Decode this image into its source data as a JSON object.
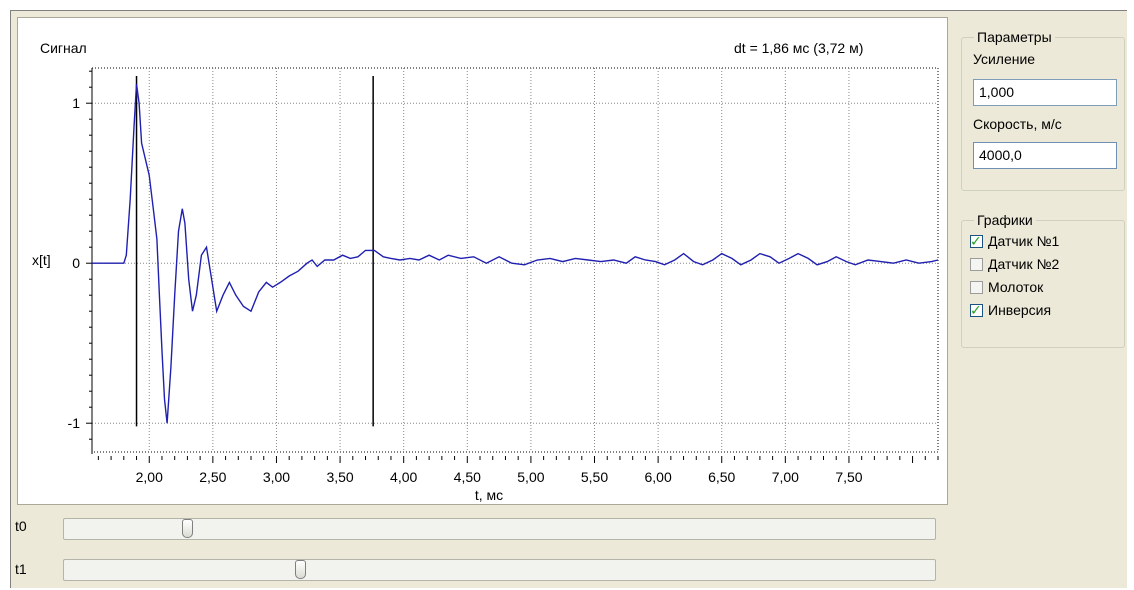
{
  "chart": {
    "title": "Сигнал",
    "dt_readout": "dt = 1,86 мс  (3,72 м)",
    "ylabel": "x[t]",
    "xlabel": "t, мс",
    "line_color": "#2020b0",
    "marker_color": "#000000"
  },
  "chart_data": {
    "type": "line",
    "title": "Сигнал",
    "xlabel": "t, мс",
    "ylabel": "x[t]",
    "xlim": [
      1.55,
      8.2
    ],
    "ylim": [
      -1.18,
      1.22
    ],
    "x_ticks": [
      "2,00",
      "2,50",
      "3,00",
      "3,50",
      "4,00",
      "4,50",
      "5,00",
      "5,50",
      "6,00",
      "6,50",
      "7,00",
      "7,50"
    ],
    "x_tick_values": [
      2.0,
      2.5,
      3.0,
      3.5,
      4.0,
      4.5,
      5.0,
      5.5,
      6.0,
      6.5,
      7.0,
      7.5
    ],
    "y_ticks": [
      "-1",
      "0",
      "1"
    ],
    "y_tick_values": [
      -1,
      0,
      1
    ],
    "grid": true,
    "vertical_markers": [
      1.9,
      3.76
    ],
    "series": [
      {
        "values": [
          [
            1.55,
            0
          ],
          [
            1.8,
            0
          ],
          [
            1.82,
            0.05
          ],
          [
            1.85,
            0.4
          ],
          [
            1.88,
            0.85
          ],
          [
            1.9,
            1.12
          ],
          [
            1.92,
            1.0
          ],
          [
            1.94,
            0.75
          ],
          [
            1.97,
            0.65
          ],
          [
            2.0,
            0.55
          ],
          [
            2.03,
            0.35
          ],
          [
            2.06,
            0.15
          ],
          [
            2.08,
            -0.2
          ],
          [
            2.1,
            -0.55
          ],
          [
            2.12,
            -0.85
          ],
          [
            2.14,
            -1.0
          ],
          [
            2.17,
            -0.65
          ],
          [
            2.2,
            -0.2
          ],
          [
            2.23,
            0.2
          ],
          [
            2.26,
            0.34
          ],
          [
            2.28,
            0.25
          ],
          [
            2.31,
            -0.1
          ],
          [
            2.34,
            -0.3
          ],
          [
            2.37,
            -0.2
          ],
          [
            2.41,
            0.05
          ],
          [
            2.45,
            0.1
          ],
          [
            2.49,
            -0.1
          ],
          [
            2.53,
            -0.3
          ],
          [
            2.58,
            -0.2
          ],
          [
            2.63,
            -0.12
          ],
          [
            2.68,
            -0.2
          ],
          [
            2.74,
            -0.27
          ],
          [
            2.8,
            -0.3
          ],
          [
            2.86,
            -0.18
          ],
          [
            2.92,
            -0.12
          ],
          [
            2.97,
            -0.15
          ],
          [
            3.03,
            -0.12
          ],
          [
            3.1,
            -0.08
          ],
          [
            3.17,
            -0.05
          ],
          [
            3.24,
            0.0
          ],
          [
            3.28,
            0.02
          ],
          [
            3.32,
            -0.02
          ],
          [
            3.38,
            0.02
          ],
          [
            3.45,
            0.02
          ],
          [
            3.52,
            0.05
          ],
          [
            3.58,
            0.03
          ],
          [
            3.64,
            0.04
          ],
          [
            3.7,
            0.08
          ],
          [
            3.77,
            0.08
          ],
          [
            3.84,
            0.04
          ],
          [
            3.9,
            0.03
          ],
          [
            3.97,
            0.02
          ],
          [
            4.05,
            0.03
          ],
          [
            4.12,
            0.02
          ],
          [
            4.2,
            0.05
          ],
          [
            4.28,
            0.02
          ],
          [
            4.35,
            0.05
          ],
          [
            4.45,
            0.03
          ],
          [
            4.55,
            0.04
          ],
          [
            4.65,
            0.0
          ],
          [
            4.75,
            0.04
          ],
          [
            4.85,
            0.0
          ],
          [
            4.95,
            -0.01
          ],
          [
            5.05,
            0.02
          ],
          [
            5.15,
            0.03
          ],
          [
            5.25,
            0.01
          ],
          [
            5.35,
            0.03
          ],
          [
            5.45,
            0.02
          ],
          [
            5.55,
            0.01
          ],
          [
            5.65,
            0.02
          ],
          [
            5.75,
            0.0
          ],
          [
            5.82,
            0.04
          ],
          [
            5.9,
            0.02
          ],
          [
            5.98,
            0.01
          ],
          [
            6.05,
            -0.01
          ],
          [
            6.13,
            0.02
          ],
          [
            6.2,
            0.06
          ],
          [
            6.28,
            0.01
          ],
          [
            6.35,
            -0.01
          ],
          [
            6.43,
            0.02
          ],
          [
            6.5,
            0.06
          ],
          [
            6.58,
            0.03
          ],
          [
            6.65,
            -0.01
          ],
          [
            6.73,
            0.02
          ],
          [
            6.8,
            0.06
          ],
          [
            6.88,
            0.04
          ],
          [
            6.95,
            0.0
          ],
          [
            7.03,
            0.03
          ],
          [
            7.1,
            0.06
          ],
          [
            7.18,
            0.03
          ],
          [
            7.25,
            -0.01
          ],
          [
            7.33,
            0.01
          ],
          [
            7.4,
            0.04
          ],
          [
            7.48,
            0.01
          ],
          [
            7.55,
            -0.01
          ],
          [
            7.65,
            0.02
          ],
          [
            7.75,
            0.01
          ],
          [
            7.85,
            0.0
          ],
          [
            7.95,
            0.02
          ],
          [
            8.05,
            0.0
          ],
          [
            8.15,
            0.01
          ],
          [
            8.2,
            0.02
          ]
        ]
      }
    ]
  },
  "params": {
    "legend": "Параметры",
    "gain_label": "Усиление",
    "gain_value": "1,000",
    "speed_label": "Скорость, м/с",
    "speed_value": "4000,0"
  },
  "graphs": {
    "legend": "Графики",
    "items": [
      {
        "label": "Датчик №1",
        "checked": true
      },
      {
        "label": "Датчик №2",
        "checked": false
      },
      {
        "label": "Молоток",
        "checked": false
      },
      {
        "label": "Инверсия",
        "checked": true
      }
    ]
  },
  "sliders": [
    {
      "label": "t0",
      "value": 0.137
    },
    {
      "label": "t1",
      "value": 0.268
    }
  ]
}
